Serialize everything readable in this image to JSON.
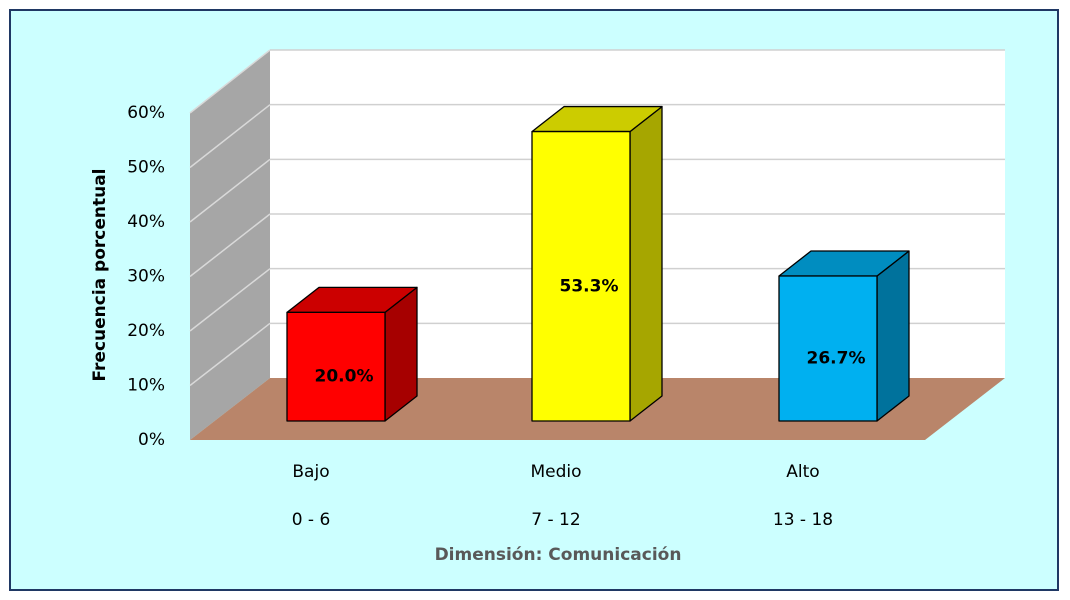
{
  "chart_data": {
    "type": "bar3d",
    "categories": [
      "Bajo",
      "Medio",
      "Alto"
    ],
    "category_ranges": [
      "0 - 6",
      "7 - 12",
      "13 - 18"
    ],
    "values": [
      20.0,
      53.3,
      26.7
    ],
    "value_labels": [
      "20.0%",
      "53.3%",
      "26.7%"
    ],
    "colors": [
      "#ff0000",
      "#ffff00",
      "#00b0f0"
    ],
    "ylabel": "Frecuencia porcentual",
    "xlabel": "Dimensión: Comunicación",
    "ylim": [
      0,
      60
    ],
    "yticks": [
      {
        "value": 0,
        "label": "0%"
      },
      {
        "value": 10,
        "label": "10%"
      },
      {
        "value": 20,
        "label": "20%"
      },
      {
        "value": 30,
        "label": "30%"
      },
      {
        "value": 40,
        "label": "40%"
      },
      {
        "value": 50,
        "label": "50%"
      },
      {
        "value": 60,
        "label": "60%"
      }
    ],
    "grid": true
  }
}
